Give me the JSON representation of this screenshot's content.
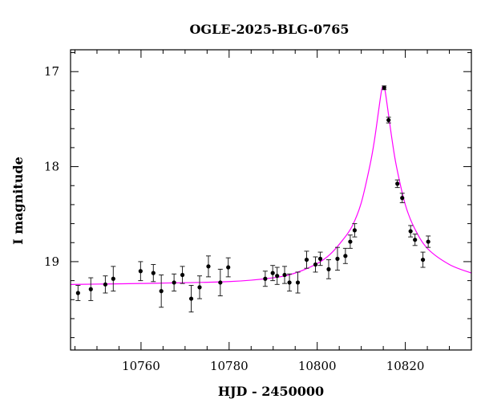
{
  "chart_data": {
    "type": "scatter",
    "title": "OGLE-2025-BLG-0765",
    "xlabel": "HJD - 2450000",
    "ylabel": "I magnitude",
    "xlim": [
      10744,
      10835
    ],
    "ylim": [
      19.93,
      16.77
    ],
    "y_inverted": true,
    "grid": false,
    "legend": "none",
    "x_ticks": [
      "10760",
      "10780",
      "10800",
      "10820"
    ],
    "y_ticks": [
      "17",
      "18",
      "19"
    ],
    "series": [
      {
        "color": "#000000",
        "points": [
          {
            "x": 10745.7,
            "y": 19.33,
            "err": 0.08
          },
          {
            "x": 10748.6,
            "y": 19.29,
            "err": 0.12
          },
          {
            "x": 10751.9,
            "y": 19.24,
            "err": 0.09
          },
          {
            "x": 10753.7,
            "y": 19.18,
            "err": 0.13
          },
          {
            "x": 10759.9,
            "y": 19.1,
            "err": 0.1
          },
          {
            "x": 10762.8,
            "y": 19.12,
            "err": 0.09
          },
          {
            "x": 10764.6,
            "y": 19.31,
            "err": 0.17
          },
          {
            "x": 10767.5,
            "y": 19.22,
            "err": 0.09
          },
          {
            "x": 10769.4,
            "y": 19.14,
            "err": 0.09
          },
          {
            "x": 10771.4,
            "y": 19.39,
            "err": 0.14
          },
          {
            "x": 10773.3,
            "y": 19.27,
            "err": 0.12
          },
          {
            "x": 10775.3,
            "y": 19.05,
            "err": 0.11
          },
          {
            "x": 10778.0,
            "y": 19.22,
            "err": 0.14
          },
          {
            "x": 10779.8,
            "y": 19.06,
            "err": 0.1
          },
          {
            "x": 10788.2,
            "y": 19.18,
            "err": 0.08
          },
          {
            "x": 10789.9,
            "y": 19.12,
            "err": 0.08
          },
          {
            "x": 10790.9,
            "y": 19.15,
            "err": 0.09
          },
          {
            "x": 10792.6,
            "y": 19.14,
            "err": 0.09
          },
          {
            "x": 10793.7,
            "y": 19.22,
            "err": 0.09
          },
          {
            "x": 10795.6,
            "y": 19.22,
            "err": 0.11
          },
          {
            "x": 10797.6,
            "y": 18.98,
            "err": 0.09
          },
          {
            "x": 10799.6,
            "y": 19.03,
            "err": 0.08
          },
          {
            "x": 10800.7,
            "y": 18.97,
            "err": 0.07
          },
          {
            "x": 10802.6,
            "y": 19.08,
            "err": 0.1
          },
          {
            "x": 10804.6,
            "y": 18.97,
            "err": 0.12
          },
          {
            "x": 10806.4,
            "y": 18.94,
            "err": 0.08
          },
          {
            "x": 10807.5,
            "y": 18.79,
            "err": 0.07
          },
          {
            "x": 10808.5,
            "y": 18.67,
            "err": 0.07
          },
          {
            "x": 10815.2,
            "y": 17.17,
            "err": 0.02
          },
          {
            "x": 10816.2,
            "y": 17.51,
            "err": 0.03
          },
          {
            "x": 10818.2,
            "y": 18.18,
            "err": 0.04
          },
          {
            "x": 10819.3,
            "y": 18.33,
            "err": 0.05
          },
          {
            "x": 10821.2,
            "y": 18.68,
            "err": 0.06
          },
          {
            "x": 10822.2,
            "y": 18.77,
            "err": 0.06
          },
          {
            "x": 10824.0,
            "y": 18.98,
            "err": 0.08
          },
          {
            "x": 10825.2,
            "y": 18.79,
            "err": 0.06
          }
        ]
      },
      {
        "color": "#ff00ff",
        "style": "line",
        "curve": [
          {
            "x": 10744,
            "y": 19.24
          },
          {
            "x": 10760,
            "y": 19.23
          },
          {
            "x": 10780,
            "y": 19.21
          },
          {
            "x": 10790,
            "y": 19.17
          },
          {
            "x": 10795,
            "y": 19.12
          },
          {
            "x": 10800,
            "y": 19.02
          },
          {
            "x": 10803,
            "y": 18.92
          },
          {
            "x": 10806,
            "y": 18.76
          },
          {
            "x": 10808,
            "y": 18.62
          },
          {
            "x": 10810,
            "y": 18.38
          },
          {
            "x": 10812,
            "y": 17.98
          },
          {
            "x": 10813,
            "y": 17.72
          },
          {
            "x": 10814,
            "y": 17.39
          },
          {
            "x": 10814.6,
            "y": 17.2
          },
          {
            "x": 10815.0,
            "y": 17.15
          },
          {
            "x": 10815.4,
            "y": 17.2
          },
          {
            "x": 10816,
            "y": 17.39
          },
          {
            "x": 10817,
            "y": 17.72
          },
          {
            "x": 10818,
            "y": 18.0
          },
          {
            "x": 10820,
            "y": 18.4
          },
          {
            "x": 10822,
            "y": 18.64
          },
          {
            "x": 10825,
            "y": 18.86
          },
          {
            "x": 10830,
            "y": 19.03
          },
          {
            "x": 10835,
            "y": 19.12
          }
        ]
      }
    ]
  }
}
